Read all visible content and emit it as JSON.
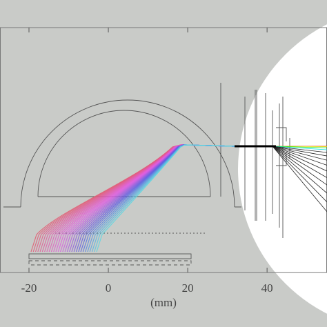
{
  "chart_data": {
    "type": "trajectory",
    "xlabel": "(mm)",
    "xlim": [
      -27.3,
      55.1
    ],
    "xticks": [
      -20,
      0,
      20,
      40
    ]
  }
}
